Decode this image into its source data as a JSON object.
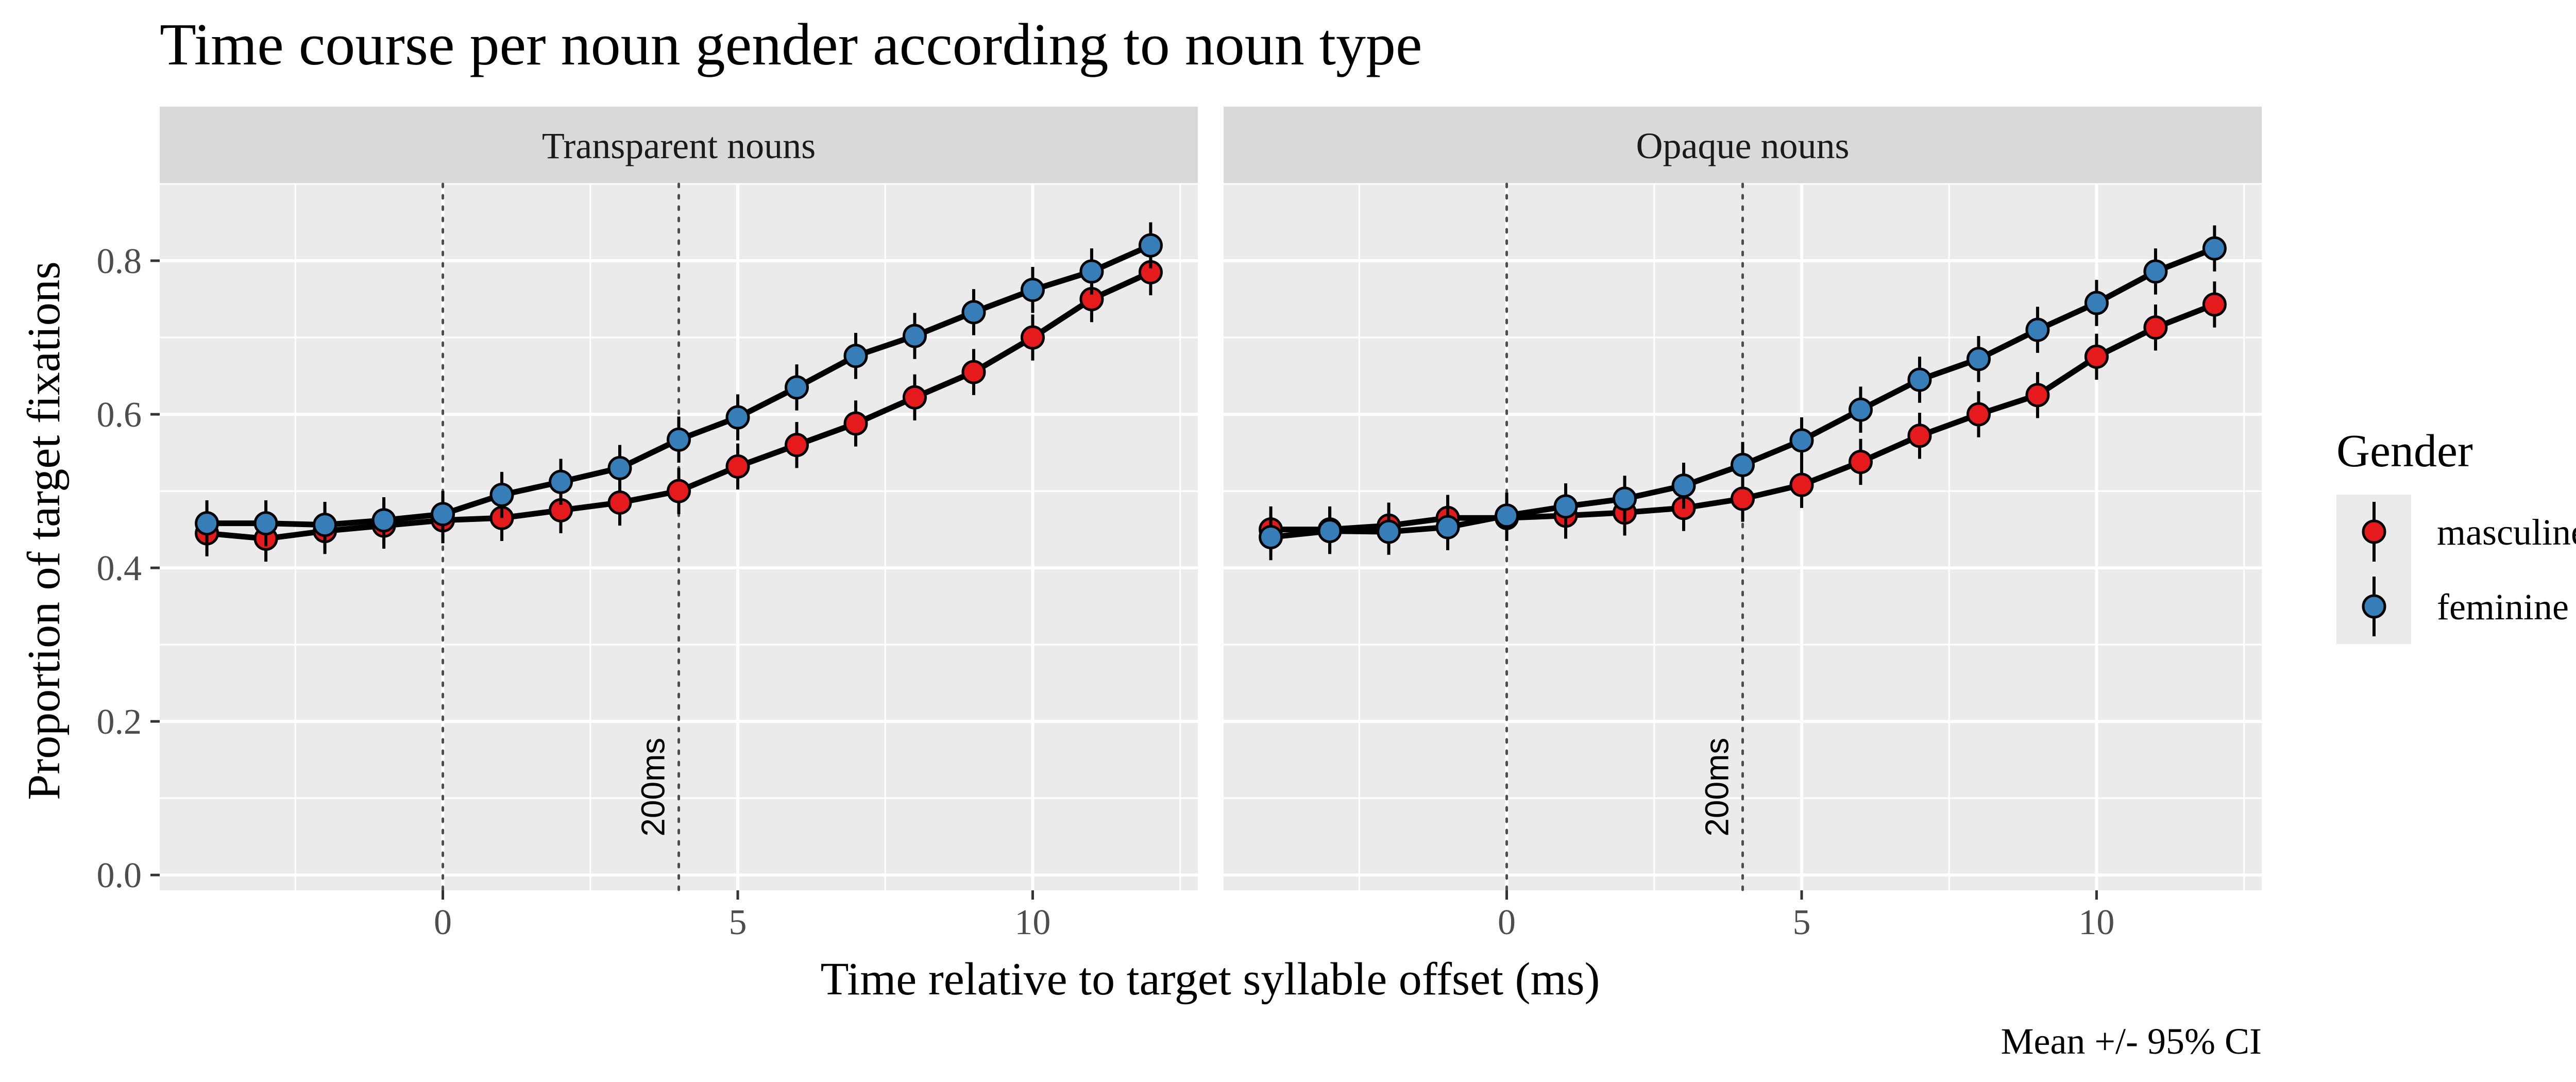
{
  "chart_data": {
    "type": "line",
    "title": "Time course per noun gender according to noun type",
    "xlabel": "Time relative to target syllable offset (ms)",
    "ylabel": "Proportion of target fixations",
    "caption": "Mean +/- 95% CI",
    "xlim": [
      -4.8,
      12.8
    ],
    "ylim": [
      -0.02,
      0.9
    ],
    "x_ticks": [
      0,
      5,
      10
    ],
    "y_ticks": [
      0.0,
      0.2,
      0.4,
      0.6,
      0.8
    ],
    "x_tick_labels": [
      "0",
      "5",
      "10"
    ],
    "y_tick_labels": [
      "0.0",
      "0.2",
      "0.4",
      "0.6",
      "0.8"
    ],
    "grid": true,
    "legend": {
      "title": "Gender",
      "position": "right",
      "entries": [
        {
          "label": "masculine",
          "color": "#e41a1c"
        },
        {
          "label": "feminine",
          "color": "#377eb8"
        }
      ]
    },
    "reference_lines": [
      {
        "x": 0,
        "label": ""
      },
      {
        "x": 4,
        "label": "200ms"
      }
    ],
    "ci_halfwidth": 0.03,
    "x": [
      -4,
      -3,
      -2,
      -1,
      0,
      1,
      2,
      3,
      4,
      5,
      6,
      7,
      8,
      9,
      10,
      11,
      12
    ],
    "panels": [
      {
        "title": "Transparent nouns",
        "series": [
          {
            "name": "masculine",
            "color": "#e41a1c",
            "values": [
              0.445,
              0.438,
              0.448,
              0.455,
              0.462,
              0.465,
              0.475,
              0.485,
              0.5,
              0.532,
              0.56,
              0.588,
              0.622,
              0.655,
              0.7,
              0.75,
              0.785
            ]
          },
          {
            "name": "feminine",
            "color": "#377eb8",
            "values": [
              0.458,
              0.458,
              0.456,
              0.462,
              0.47,
              0.495,
              0.512,
              0.53,
              0.567,
              0.596,
              0.635,
              0.676,
              0.702,
              0.733,
              0.762,
              0.786,
              0.82
            ]
          }
        ]
      },
      {
        "title": "Opaque nouns",
        "series": [
          {
            "name": "masculine",
            "color": "#e41a1c",
            "values": [
              0.45,
              0.45,
              0.455,
              0.465,
              0.465,
              0.468,
              0.472,
              0.478,
              0.49,
              0.508,
              0.538,
              0.572,
              0.6,
              0.625,
              0.675,
              0.713,
              0.743
            ]
          },
          {
            "name": "feminine",
            "color": "#377eb8",
            "values": [
              0.44,
              0.448,
              0.447,
              0.453,
              0.468,
              0.48,
              0.49,
              0.507,
              0.534,
              0.566,
              0.606,
              0.645,
              0.672,
              0.71,
              0.745,
              0.786,
              0.816
            ]
          }
        ]
      }
    ]
  }
}
